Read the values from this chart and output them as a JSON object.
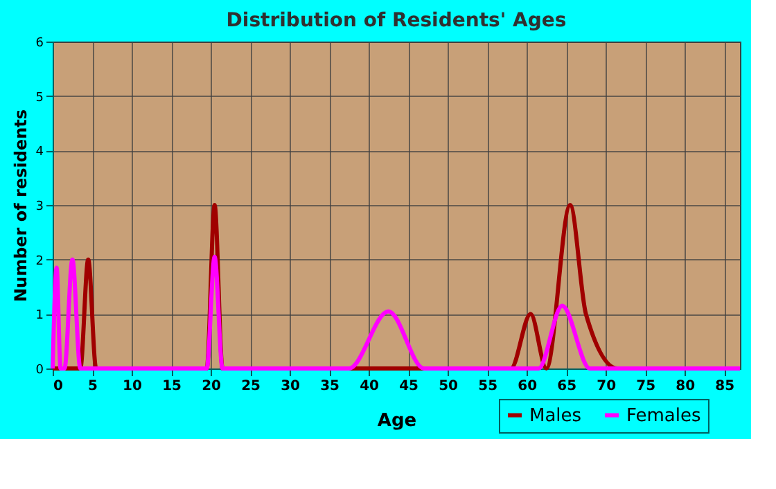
{
  "chart_data": {
    "type": "line",
    "title": "Distribution of Residents' Ages",
    "xlabel": "Age",
    "ylabel": "Number of residents",
    "xlim": [
      0,
      87
    ],
    "xticks": [
      0,
      5,
      10,
      15,
      20,
      25,
      30,
      35,
      40,
      45,
      50,
      55,
      60,
      65,
      70,
      75,
      80,
      85
    ],
    "ylim": [
      0,
      6
    ],
    "yticks": [
      0,
      1,
      2,
      3,
      4,
      5,
      6
    ],
    "grid": true,
    "legend": "bottom right",
    "line_style": "solid",
    "marker": "none",
    "series": [
      {
        "name": "Males",
        "color": "#a00000",
        "x": [
          0,
          3.5,
          4.5,
          5.5,
          19.5,
          20.5,
          21.5,
          58,
          60.5,
          62.5,
          65.5,
          67.5,
          71.5,
          87
        ],
        "values": [
          0,
          0,
          2,
          0,
          0,
          3,
          0,
          0,
          1,
          0,
          3,
          1,
          0,
          0
        ]
      },
      {
        "name": "Females",
        "color": "#ff00ff",
        "x": [
          0,
          0.5,
          1,
          1.5,
          2.5,
          3.5,
          19.5,
          20.5,
          21.5,
          37.5,
          42.5,
          47,
          61.5,
          64.5,
          68,
          87
        ],
        "values": [
          0,
          1.85,
          0,
          0,
          2,
          0,
          0,
          2.05,
          0,
          0,
          1.05,
          0,
          0,
          1.15,
          0,
          0
        ]
      }
    ]
  }
}
